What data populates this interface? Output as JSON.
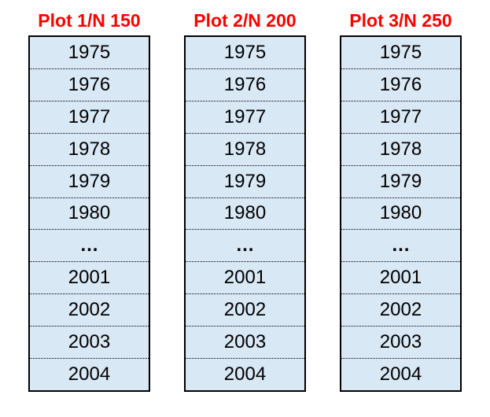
{
  "styles": {
    "background": "#ffffff",
    "title_color": "#ff0000",
    "cell_fill": "#d9e8f5",
    "border_color": "#000000",
    "text_color": "#000000"
  },
  "columns": [
    {
      "title": "Plot 1/N 150",
      "years": [
        "1975",
        "1976",
        "1977",
        "1978",
        "1979",
        "1980",
        "…",
        "2001",
        "2002",
        "2003",
        "2004"
      ]
    },
    {
      "title": "Plot 2/N 200",
      "years": [
        "1975",
        "1976",
        "1977",
        "1978",
        "1979",
        "1980",
        "…",
        "2001",
        "2002",
        "2003",
        "2004"
      ]
    },
    {
      "title": "Plot 3/N 250",
      "years": [
        "1975",
        "1976",
        "1977",
        "1978",
        "1979",
        "1980",
        "…",
        "2001",
        "2002",
        "2003",
        "2004"
      ]
    }
  ]
}
